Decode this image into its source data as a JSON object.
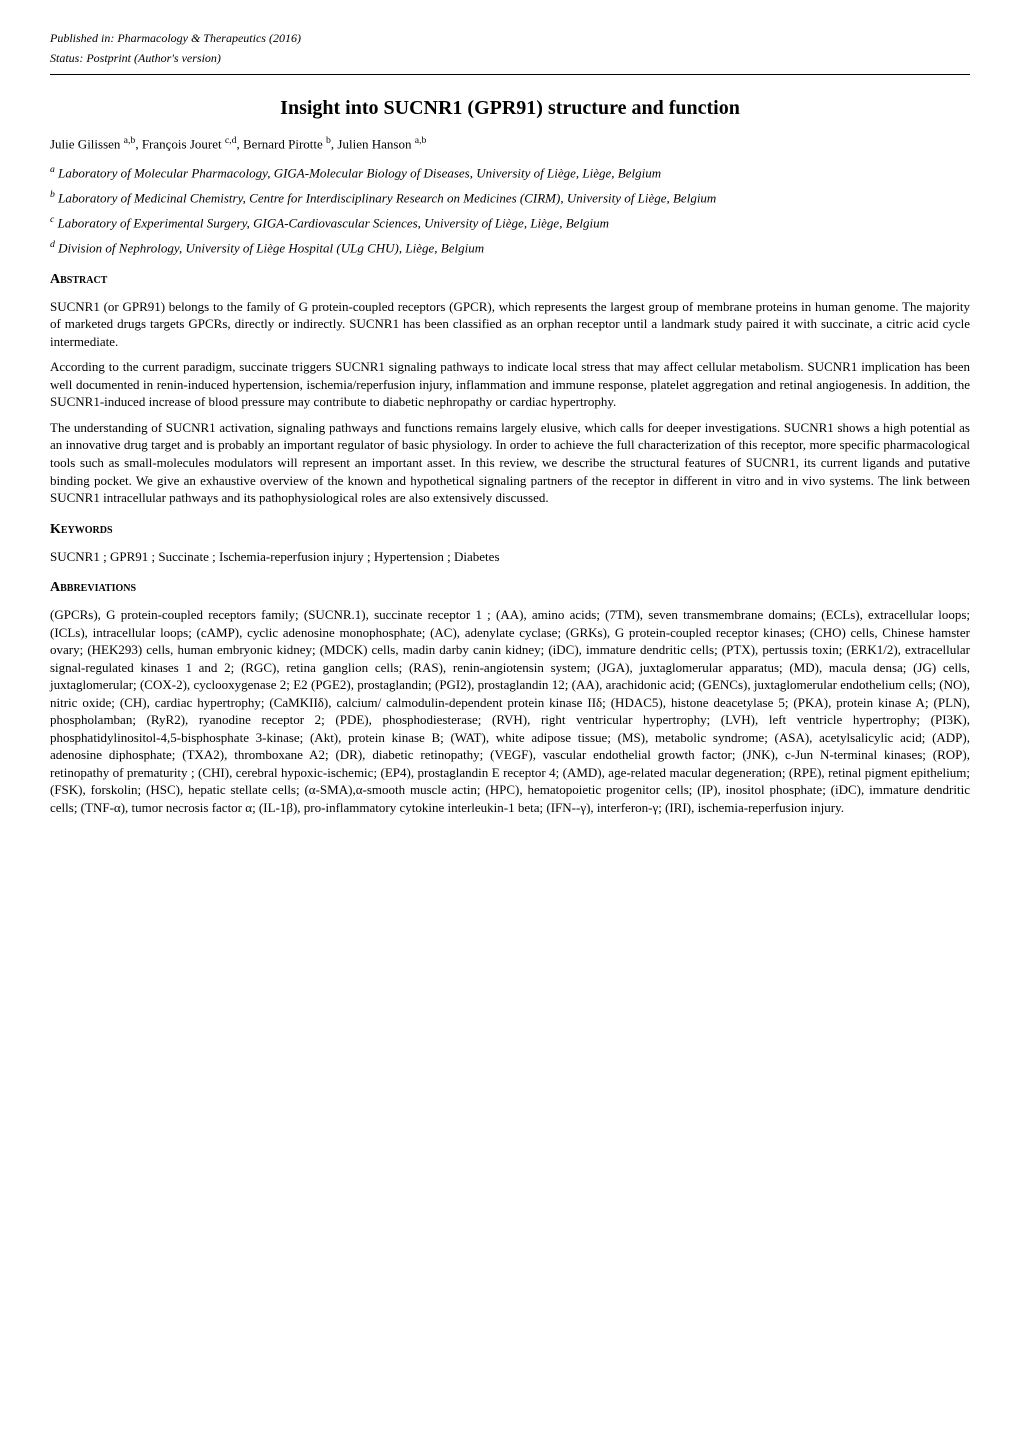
{
  "header": {
    "pub_line1": "Published in: Pharmacology & Therapeutics (2016)",
    "pub_line2": "Status: Postprint (Author's version)"
  },
  "title": "Insight into SUCNR1 (GPR91) structure and function",
  "authors_html": "Julie Gilissen <sup>a,b</sup>, François Jouret <sup>c,d</sup>, Bernard Pirotte <sup>b</sup>, Julien Hanson <sup>a,b</sup>",
  "affiliations": {
    "a": "<sup>a</sup> Laboratory of Molecular Pharmacology, GIGA-Molecular Biology of Diseases, University of Liège, Liège, Belgium",
    "b": "<sup>b</sup> Laboratory of Medicinal Chemistry, Centre for Interdisciplinary Research on Medicines (CIRM), University of Liège, Belgium",
    "c": "<sup>c</sup> Laboratory of Experimental Surgery, GIGA-Cardiovascular Sciences, University of Liège, Liège, Belgium",
    "d": "<sup>d</sup> Division of Nephrology, University of Liège Hospital (ULg CHU), Liège, Belgium"
  },
  "sections": {
    "abstract_head": "Abstract",
    "abstract_p1": "SUCNR1 (or GPR91) belongs to the family of G protein-coupled receptors (GPCR), which represents the largest group of membrane proteins in human genome. The majority of marketed drugs targets GPCRs, directly or indirectly. SUCNR1 has been classified as an orphan receptor until a landmark study paired it with succinate, a citric acid cycle intermediate.",
    "abstract_p2": "According to the current paradigm, succinate triggers SUCNR1 signaling pathways to indicate local stress that may affect cellular metabolism. SUCNR1 implication has been well documented in renin-induced hypertension, ischemia/reperfusion injury, inflammation and immune response, platelet aggregation and retinal angiogenesis. In addition, the SUCNR1-induced increase of blood pressure may contribute to diabetic nephropathy or cardiac hypertrophy.",
    "abstract_p3": "The understanding of SUCNR1 activation, signaling pathways and functions remains largely elusive, which calls for deeper investigations. SUCNR1 shows a high potential as an innovative drug target and is probably an important regulator of basic physiology. In order to achieve the full characterization of this receptor, more specific pharmacological tools such as small-molecules modulators will represent an important asset. In this review, we describe the structural features of SUCNR1, its current ligands and putative binding pocket. We give an exhaustive overview of the known and hypothetical signaling partners of the receptor in different in vitro and in vivo systems. The link between SUCNR1 intracellular pathways and its pathophysiological roles are also extensively discussed.",
    "keywords_head": "Keywords",
    "keywords_body": "SUCNR1 ; GPR91 ; Succinate ; Ischemia-reperfusion injury ; Hypertension ; Diabetes",
    "abbrev_head": "Abbreviations",
    "abbrev_body": "(GPCRs), G protein-coupled receptors family; (SUCNR.1), succinate receptor 1 ; (AA), amino acids; (7TM), seven transmembrane domains; (ECLs), extracellular loops; (ICLs), intracellular loops; (cAMP), cyclic adenosine monophosphate; (AC), adenylate cyclase; (GRKs), G protein-coupled receptor kinases; (CHO) cells, Chinese hamster ovary; (HEK293) cells, human embryonic kidney; (MDCK) cells, madin darby canin kidney; (iDC), immature dendritic cells; (PTX), pertussis toxin; (ERK1/2), extracellular signal-regulated kinases 1 and 2; (RGC), retina ganglion cells; (RAS), renin-angiotensin system; (JGA), juxtaglomerular apparatus; (MD), macula densa; (JG) cells, juxtaglomerular; (COX-2), cyclooxygenase 2; E2 (PGE2), prostaglandin; (PGI2), prostaglandin 12; (AA), arachidonic acid; (GENCs), juxtaglomerular endothelium cells; (NO), nitric oxide; (CH), cardiac hypertrophy; (CaMKIIδ), calcium/ calmodulin-dependent protein kinase IIδ; (HDAC5), histone deacetylase 5; (PKA), protein kinase A; (PLN), phospholamban; (RyR2), ryanodine receptor 2; (PDE), phosphodiesterase; (RVH), right ventricular hypertrophy; (LVH), left ventricle hypertrophy; (PI3K), phosphatidylinositol-4,5-bisphosphate 3-kinase; (Akt), protein kinase B; (WAT), white adipose tissue; (MS), metabolic syndrome; (ASA), acetylsalicylic acid; (ADP), adenosine diphosphate; (TXA2), thromboxane A2; (DR), diabetic retinopathy; (VEGF), vascular endothelial growth factor; (JNK), c-Jun N-terminal kinases; (ROP), retinopathy of prematurity ; (CHI), cerebral hypoxic-ischemic; (EP4), prostaglandin E receptor 4; (AMD), age-related macular degeneration; (RPE), retinal pigment epithelium; (FSK), forskolin; (HSC), hepatic stellate cells; (α-SMA),α-smooth muscle actin; (HPC), hematopoietic progenitor cells; (IP), inositol phosphate; (iDC), immature dendritic cells; (TNF-α), tumor necrosis factor α; (IL-1β), pro-inflammatory cytokine interleukin-1 beta; (IFN--γ), interferon-γ; (IRI), ischemia-reperfusion injury."
  }
}
